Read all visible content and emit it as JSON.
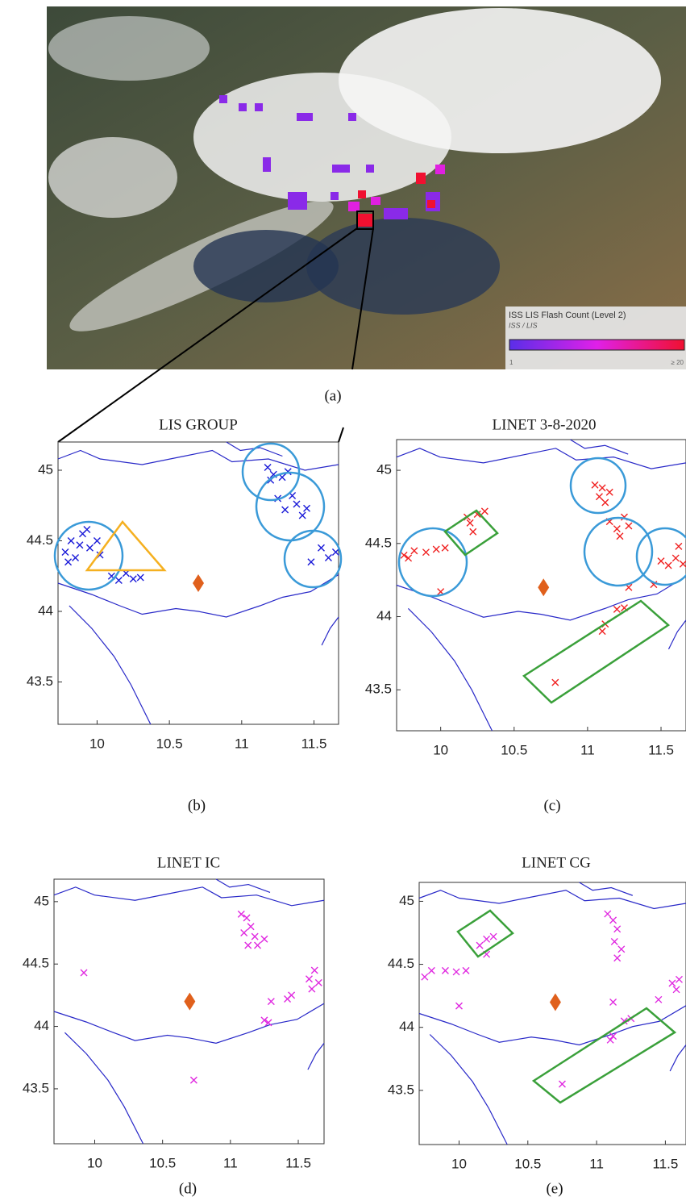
{
  "panel_a": {
    "label": "(a)",
    "legend_title": "ISS LIS Flash Count (Level 2)",
    "legend_subtitle": "ISS / LIS",
    "legend_min": "1",
    "legend_max": "≥ 20"
  },
  "panels": [
    {
      "type": "scatter",
      "label": "(b)",
      "title": "LIS GROUP",
      "color": "#1a1ad8",
      "site_color": "#e0601c",
      "xlim": [
        9.73,
        11.67
      ],
      "ylim": [
        43.2,
        45.2
      ],
      "xticks": [
        10,
        10.5,
        11,
        11.5
      ],
      "yticks": [
        43.5,
        44,
        44.5,
        45
      ],
      "site": {
        "x": 10.7,
        "y": 44.2
      },
      "x": [
        9.78,
        9.82,
        9.85,
        9.9,
        9.95,
        10.0,
        9.88,
        9.8,
        10.02,
        9.93,
        10.1,
        10.15,
        10.2,
        10.25,
        10.3,
        11.18,
        11.22,
        11.28,
        11.32,
        11.2,
        11.25,
        11.3,
        11.38,
        11.45,
        11.35,
        11.42,
        11.55,
        11.6,
        11.65,
        11.48
      ],
      "y": [
        44.42,
        44.5,
        44.38,
        44.55,
        44.45,
        44.5,
        44.47,
        44.35,
        44.4,
        44.58,
        44.25,
        44.22,
        44.27,
        44.23,
        44.24,
        45.02,
        44.97,
        44.95,
        44.99,
        44.93,
        44.8,
        44.72,
        44.76,
        44.73,
        44.82,
        44.68,
        44.45,
        44.38,
        44.42,
        44.35
      ]
    },
    {
      "type": "scatter",
      "label": "(c)",
      "title": "LINET 3-8-2020",
      "color": "#f02020",
      "site_color": "#e0601c",
      "xlim": [
        9.7,
        11.67
      ],
      "ylim": [
        43.22,
        45.21
      ],
      "xticks": [
        10,
        10.5,
        11,
        11.5
      ],
      "yticks": [
        43.5,
        44,
        44.5,
        45
      ],
      "site": {
        "x": 10.7,
        "y": 44.2
      },
      "x": [
        9.75,
        9.82,
        9.9,
        9.97,
        10.03,
        9.78,
        10.0,
        10.18,
        10.2,
        10.25,
        10.3,
        10.22,
        11.05,
        11.1,
        11.15,
        11.08,
        11.12,
        11.15,
        11.2,
        11.25,
        11.22,
        11.28,
        11.5,
        11.55,
        11.6,
        11.65,
        11.62,
        11.28,
        11.2,
        11.25,
        11.1,
        11.12,
        11.45,
        10.78
      ],
      "y": [
        44.42,
        44.45,
        44.44,
        44.46,
        44.47,
        44.4,
        44.17,
        44.68,
        44.64,
        44.7,
        44.72,
        44.58,
        44.9,
        44.88,
        44.85,
        44.82,
        44.78,
        44.65,
        44.6,
        44.68,
        44.55,
        44.62,
        44.38,
        44.35,
        44.4,
        44.36,
        44.48,
        44.2,
        44.05,
        44.06,
        43.9,
        43.95,
        44.22,
        43.55
      ]
    },
    {
      "type": "scatter",
      "label": "(d)",
      "title": "LINET IC",
      "color": "#e028e0",
      "site_color": "#e0601c",
      "xlim": [
        9.7,
        11.69
      ],
      "ylim": [
        43.06,
        45.18
      ],
      "xticks": [
        10,
        10.5,
        11,
        11.5
      ],
      "yticks": [
        43.5,
        44,
        44.5,
        45
      ],
      "site": {
        "x": 10.7,
        "y": 44.2
      },
      "x": [
        9.92,
        11.08,
        11.12,
        11.15,
        11.1,
        11.18,
        11.13,
        11.2,
        11.25,
        11.3,
        11.25,
        11.28,
        11.42,
        11.45,
        11.58,
        11.62,
        11.65,
        11.6,
        10.73
      ],
      "y": [
        44.43,
        44.9,
        44.87,
        44.8,
        44.75,
        44.72,
        44.65,
        44.65,
        44.7,
        44.2,
        44.05,
        44.03,
        44.22,
        44.25,
        44.38,
        44.45,
        44.35,
        44.3,
        43.57
      ]
    },
    {
      "type": "scatter",
      "label": "(e)",
      "title": "LINET CG",
      "color": "#e028e0",
      "site_color": "#e0601c",
      "xlim": [
        9.71,
        11.65
      ],
      "ylim": [
        43.07,
        45.15
      ],
      "xticks": [
        10,
        10.5,
        11,
        11.5
      ],
      "yticks": [
        43.5,
        44,
        44.5,
        45
      ],
      "site": {
        "x": 10.7,
        "y": 44.2
      },
      "x": [
        9.8,
        9.9,
        9.98,
        10.05,
        9.75,
        10.0,
        10.15,
        10.2,
        10.25,
        10.2,
        11.08,
        11.12,
        11.15,
        11.13,
        11.18,
        11.15,
        11.12,
        11.2,
        11.25,
        11.1,
        11.12,
        11.45,
        11.55,
        11.6,
        11.58,
        10.75
      ],
      "y": [
        44.45,
        44.45,
        44.44,
        44.45,
        44.4,
        44.17,
        44.65,
        44.7,
        44.72,
        44.58,
        44.9,
        44.85,
        44.78,
        44.68,
        44.62,
        44.55,
        44.2,
        44.05,
        44.07,
        43.9,
        43.93,
        44.22,
        44.35,
        44.38,
        44.3,
        43.55
      ]
    }
  ]
}
